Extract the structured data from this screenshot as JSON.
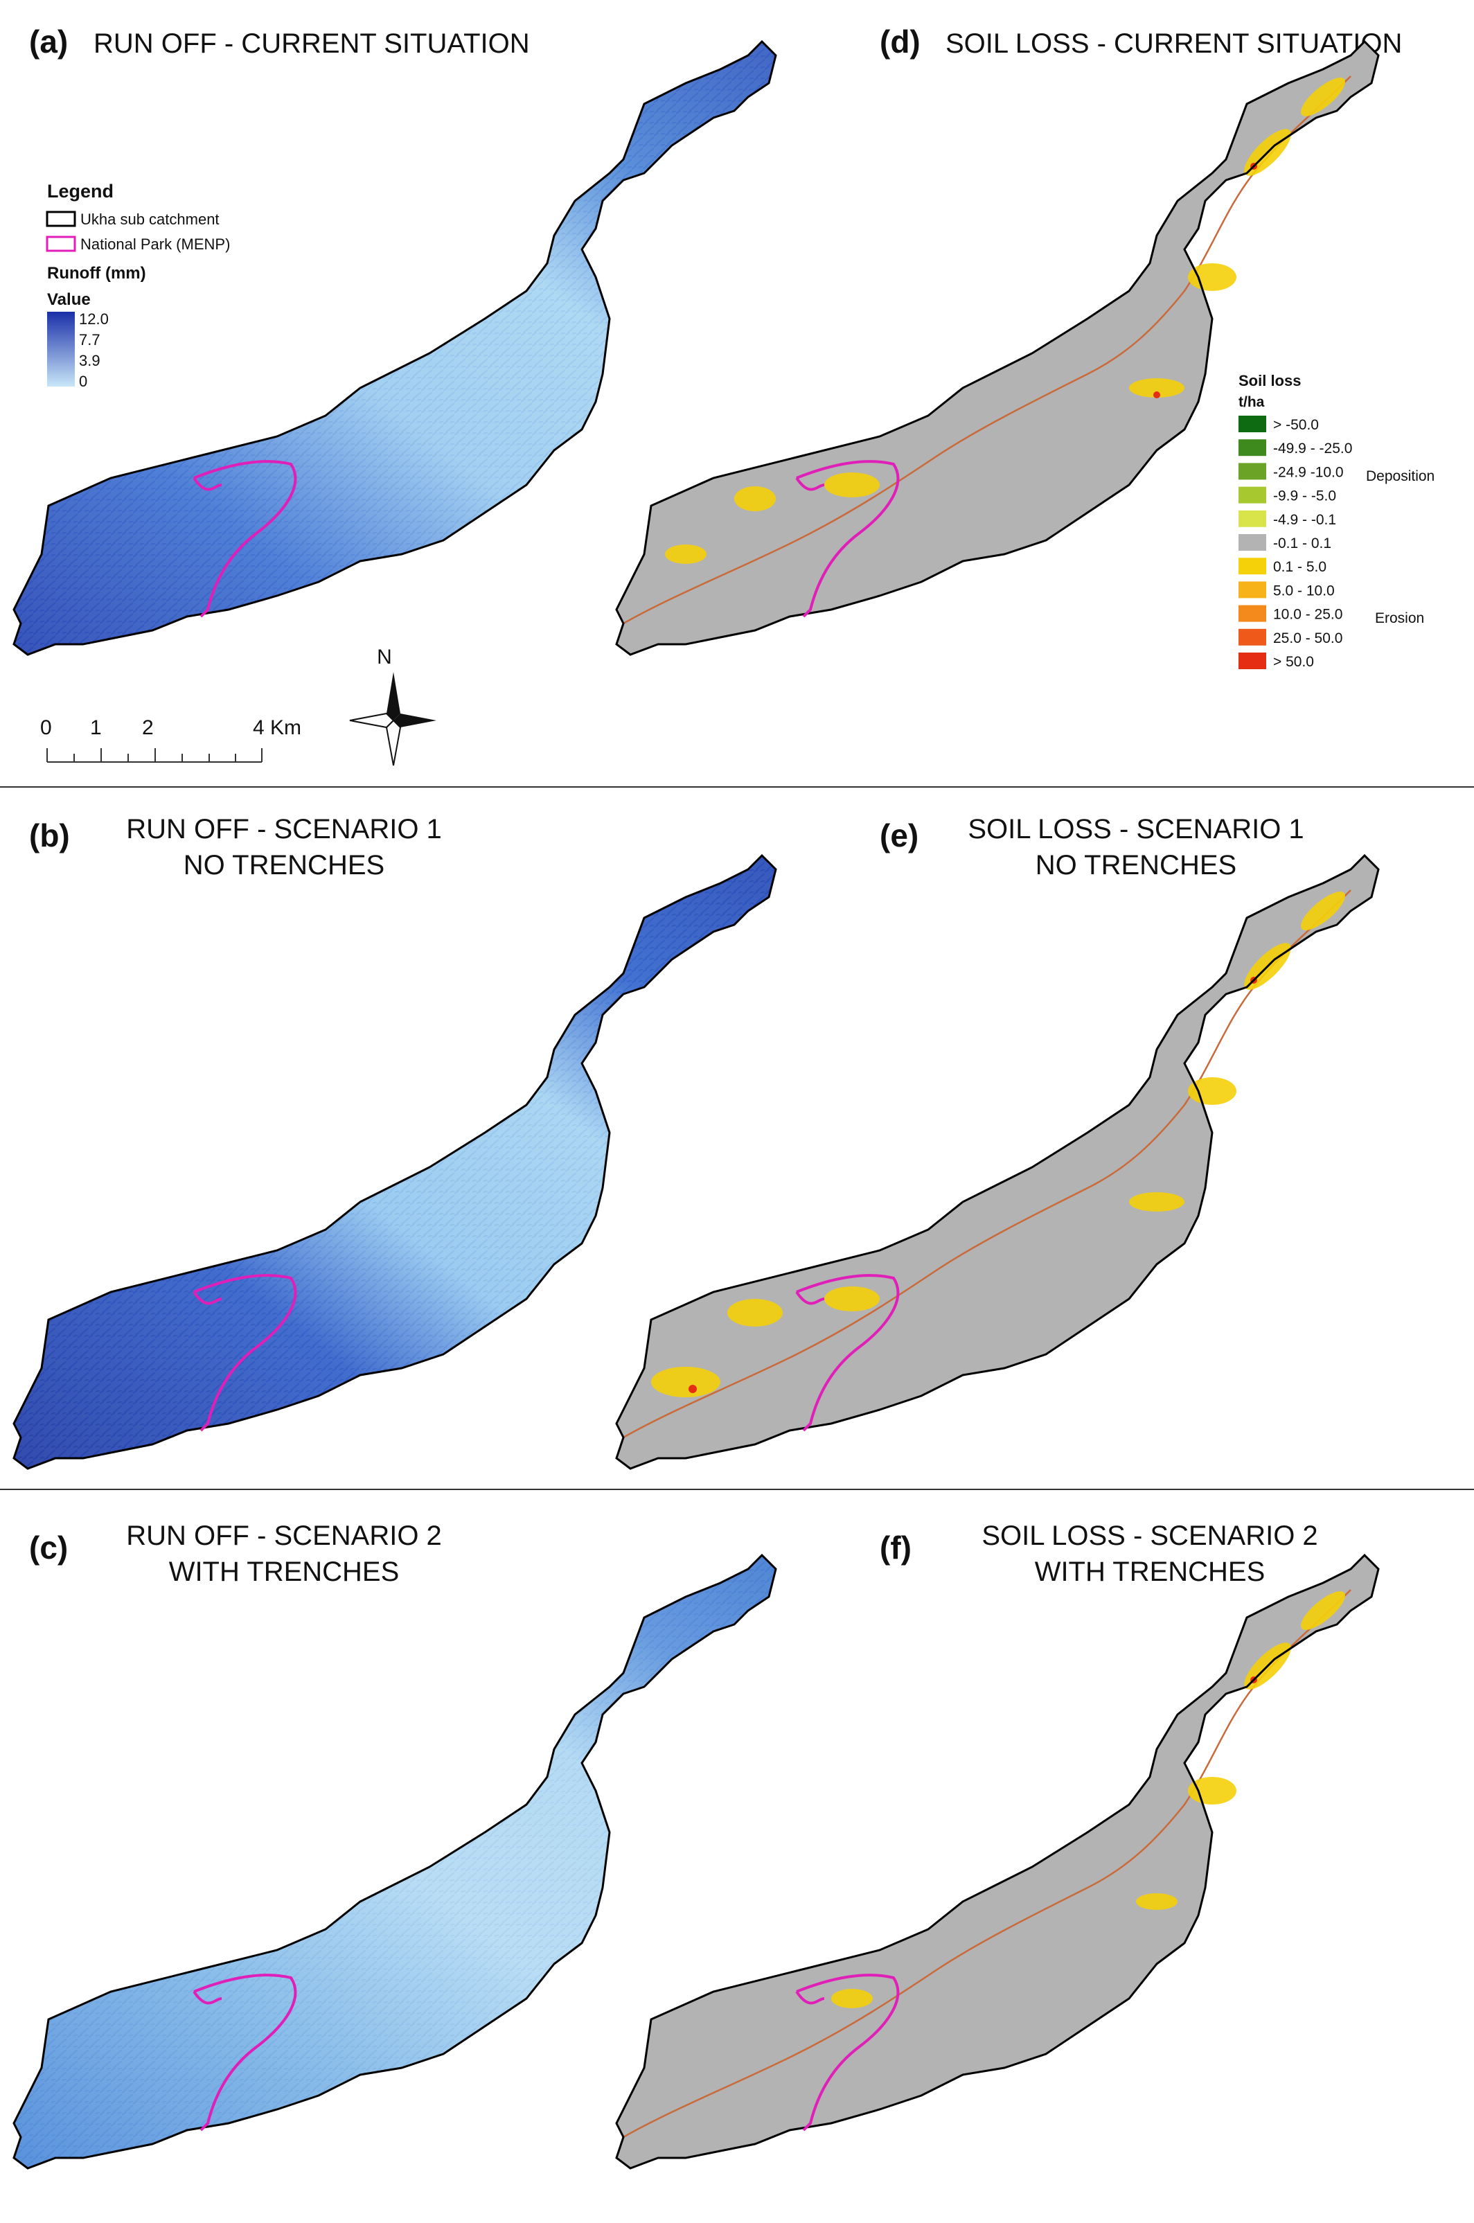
{
  "panels": {
    "a": {
      "tag": "(a)",
      "title_l1": "RUN OFF - CURRENT SITUATION",
      "title_l2": ""
    },
    "b": {
      "tag": "(b)",
      "title_l1": "RUN OFF - SCENARIO 1",
      "title_l2": "NO TRENCHES"
    },
    "c": {
      "tag": "(c)",
      "title_l1": "RUN OFF - SCENARIO 2",
      "title_l2": "WITH TRENCHES"
    },
    "d": {
      "tag": "(d)",
      "title_l1": "SOIL LOSS - CURRENT SITUATION",
      "title_l2": ""
    },
    "e": {
      "tag": "(e)",
      "title_l1": "SOIL LOSS - SCENARIO 1",
      "title_l2": "NO TRENCHES"
    },
    "f": {
      "tag": "(f)",
      "title_l1": "SOIL LOSS - SCENARIO 2",
      "title_l2": "WITH TRENCHES"
    }
  },
  "runoff_legend": {
    "heading": "Legend",
    "catchment_label": "Ukha sub catchment",
    "park_label": "National Park (MENP)",
    "runoff_label": "Runoff (mm)",
    "value_label": "Value",
    "ticks": [
      "12.0",
      "7.7",
      "3.9",
      "0"
    ],
    "colors": {
      "high": "#1a2fa8",
      "low": "#c8e6f8",
      "catchment": "#000000",
      "park": "#e01fb8"
    }
  },
  "soil_legend": {
    "heading": "Soil loss",
    "unit": "t/ha",
    "deposition_label": "Deposition",
    "erosion_label": "Erosion",
    "classes": [
      {
        "label": "> -50.0",
        "color": "#0e6b12"
      },
      {
        "label": "-49.9 - -25.0",
        "color": "#3f8a1c"
      },
      {
        "label": "-24.9 -10.0",
        "color": "#6aa325"
      },
      {
        "label": "-9.9 - -5.0",
        "color": "#a8c830"
      },
      {
        "label": "-4.9 - -0.1",
        "color": "#d9e44a"
      },
      {
        "label": "-0.1 - 0.1",
        "color": "#b3b3b3"
      },
      {
        "label": "0.1 - 5.0",
        "color": "#f5d10a"
      },
      {
        "label": "5.0 - 10.0",
        "color": "#f7b21a"
      },
      {
        "label": "10.0 - 25.0",
        "color": "#f48a1c"
      },
      {
        "label": "25.0 - 50.0",
        "color": "#ef5a1a"
      },
      {
        "label": "> 50.0",
        "color": "#e42d12"
      }
    ]
  },
  "scale_bar": {
    "labels": [
      "0",
      "1",
      "2",
      "4 Km"
    ]
  },
  "north_arrow": {
    "label": "N",
    "icon": "north-arrow-icon"
  },
  "colors": {
    "grey_area": "#b3b3b3",
    "stream": "#c96a3a"
  }
}
